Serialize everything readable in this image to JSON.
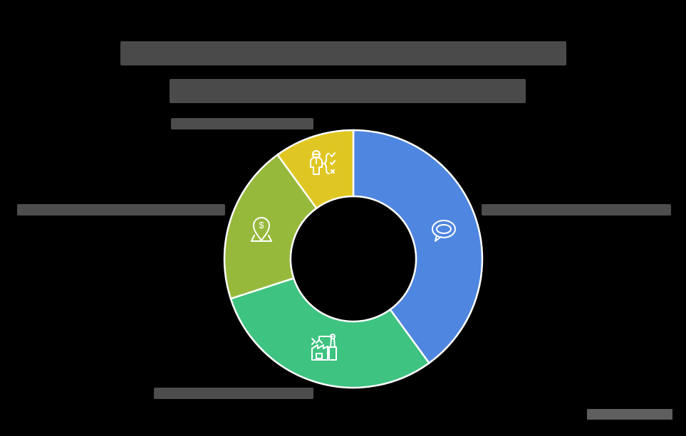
{
  "chart_data": {
    "type": "pie",
    "subtype": "donut",
    "title": "[redacted title line 1] [redacted title line 2]",
    "categories": [
      "Segment A (speech-bubble icon)",
      "Segment B (factory icon)",
      "Segment C (location-dollar icon)",
      "Segment D (person-checklist icon)"
    ],
    "values": [
      40,
      30,
      20,
      10
    ],
    "colors": [
      "#4f86e0",
      "#3ec380",
      "#97b93b",
      "#e0c623"
    ],
    "icons": [
      "speech-bubble-icon",
      "factory-robot-arm-icon",
      "location-dollar-icon",
      "person-checklist-icon"
    ],
    "labels_redacted": true,
    "legend_position": "none (labels beside segments)"
  },
  "title": {
    "line1": "",
    "line2": ""
  },
  "labels": {
    "top_left": "",
    "left": "",
    "right": "",
    "bottom": ""
  }
}
